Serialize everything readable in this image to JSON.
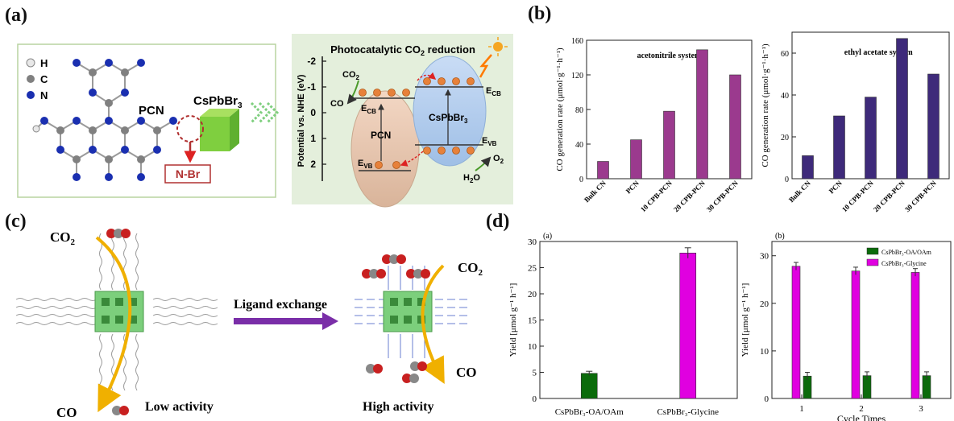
{
  "panels": {
    "a": "(a)",
    "b": "(b)",
    "c": "(c)",
    "d": "(d)"
  },
  "panel_a": {
    "legend": [
      "H",
      "C",
      "N"
    ],
    "pcn_label": "PCN",
    "cspbbr3_label": "CsPbBr",
    "cspbbr3_sub": "3",
    "nbr_label": "N-Br",
    "title": "Photocatalytic CO",
    "title_sub": "2",
    "title_tail": " reduction",
    "ylabel": "Potential vs. NHE (eV)",
    "yticks": [
      "-2",
      "-1",
      "0",
      "1",
      "2"
    ],
    "co2": "CO",
    "co2_sub": "2",
    "co": "CO",
    "ecb": "E",
    "ecb_sub": "CB",
    "evb": "E",
    "evb_sub": "VB",
    "pcn_band": "PCN",
    "csp_band": "CsPbBr",
    "csp_band_sub": "3",
    "o2": "O",
    "o2_sub": "2",
    "h2o": "H",
    "h2o_sub": "2",
    "h2o_tail": "O"
  },
  "panel_c": {
    "co2_left": "CO",
    "co2_left_sub": "2",
    "co_left": "CO",
    "ligand_exchange": "Ligand exchange",
    "low_activity": "Low activity",
    "high_activity": "High activity",
    "co2_right": "CO",
    "co2_right_sub": "2",
    "co_right": "CO"
  },
  "chart_data": [
    {
      "type": "bar",
      "panel": "(b) left",
      "title": "acetonitrile system",
      "ylabel": "CO generation rate (μmol·g⁻¹·h⁻¹)",
      "categories": [
        "Bulk CN",
        "PCN",
        "10 CPB-PCN",
        "20 CPB-PCN",
        "30 CPB-PCN"
      ],
      "values": [
        20,
        45,
        78,
        149,
        120
      ],
      "ylim": [
        0,
        160
      ],
      "yticks": [
        "0",
        "40",
        "80",
        "120",
        "160"
      ],
      "color": "#9b3a8e"
    },
    {
      "type": "bar",
      "panel": "(b) right",
      "title": "ethyl acetate system",
      "ylabel": "CO generation rate (μmol·g⁻¹·h⁻¹)",
      "categories": [
        "Bulk CN",
        "PCN",
        "10 CPB-PCN",
        "20 CPB-PCN",
        "30 CPB-PCN"
      ],
      "values": [
        11,
        30,
        39,
        67,
        50
      ],
      "ylim": [
        0,
        70
      ],
      "yticks": [
        "0",
        "20",
        "40",
        "60"
      ],
      "color": "#3e2a7a"
    },
    {
      "type": "bar",
      "panel": "(d) (a)",
      "sublabel": "(a)",
      "ylabel": "Yield [μmol g⁻¹ h⁻¹]",
      "categories": [
        "CsPbBr₃-OA/OAm",
        "CsPbBr₃-Glycine"
      ],
      "values": [
        4.8,
        27.8
      ],
      "errors": [
        0.4,
        1.0
      ],
      "colors": [
        "#0b6b0b",
        "#e000e0"
      ],
      "ylim": [
        0,
        30
      ],
      "yticks": [
        "0",
        "5",
        "10",
        "15",
        "20",
        "25",
        "30"
      ]
    },
    {
      "type": "bar",
      "panel": "(d) (b)",
      "sublabel": "(b)",
      "ylabel": "Yield [μmol g⁻¹ h⁻¹]",
      "xlabel": "Cycle Times",
      "categories": [
        "1",
        "2",
        "3"
      ],
      "series": [
        {
          "name": "CsPbBr₃-OA/OAm",
          "values": [
            4.7,
            4.8,
            4.8
          ],
          "color": "#0b6b0b"
        },
        {
          "name": "CsPbBr₃-Glycine",
          "values": [
            27.8,
            26.8,
            26.5
          ],
          "color": "#e000e0"
        }
      ],
      "errors": 0.8,
      "ylim": [
        0,
        33
      ],
      "yticks": [
        "0",
        "10",
        "20",
        "30"
      ],
      "legend_position": "top-right"
    }
  ]
}
